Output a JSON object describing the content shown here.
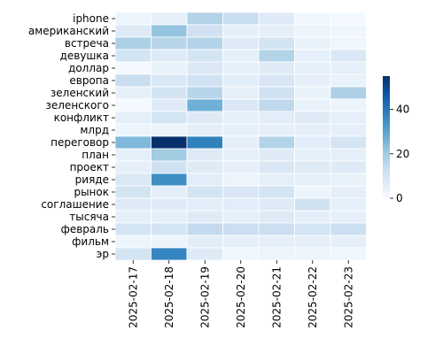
{
  "chart_data": {
    "type": "heatmap",
    "title": "",
    "xlabel": "",
    "ylabel": "",
    "categories": [
      "2025-02-17",
      "2025-02-18",
      "2025-02-19",
      "2025-02-20",
      "2025-02-21",
      "2025-02-22",
      "2025-02-23"
    ],
    "rows": [
      "iphone",
      "американский",
      "встреча",
      "девушка",
      "доллар",
      "европа",
      "зеленский",
      "зеленского",
      "конфликт",
      "млрд",
      "переговор",
      "план",
      "проект",
      "рияде",
      "рынок",
      "соглашение",
      "тысяча",
      "февраль",
      "фильм",
      "эр"
    ],
    "values": [
      [
        3,
        5,
        17,
        13,
        7,
        2,
        1
      ],
      [
        7,
        22,
        11,
        5,
        5,
        3,
        2
      ],
      [
        18,
        16,
        17,
        7,
        10,
        4,
        2
      ],
      [
        10,
        7,
        10,
        5,
        17,
        5,
        8
      ],
      [
        1,
        4,
        8,
        5,
        7,
        5,
        5
      ],
      [
        13,
        8,
        11,
        6,
        9,
        5,
        4
      ],
      [
        5,
        10,
        16,
        5,
        11,
        4,
        18
      ],
      [
        1,
        7,
        27,
        8,
        15,
        4,
        3
      ],
      [
        5,
        10,
        7,
        5,
        6,
        7,
        5
      ],
      [
        3,
        3,
        5,
        5,
        5,
        5,
        5
      ],
      [
        25,
        55,
        38,
        5,
        17,
        6,
        10
      ],
      [
        5,
        20,
        7,
        5,
        7,
        5,
        5
      ],
      [
        5,
        11,
        7,
        5,
        8,
        7,
        7
      ],
      [
        8,
        35,
        6,
        3,
        5,
        5,
        4
      ],
      [
        10,
        5,
        10,
        8,
        10,
        3,
        5
      ],
      [
        7,
        7,
        6,
        6,
        7,
        11,
        5
      ],
      [
        5,
        5,
        7,
        5,
        7,
        5,
        5
      ],
      [
        10,
        10,
        14,
        12,
        12,
        10,
        12
      ],
      [
        3,
        3,
        6,
        5,
        5,
        5,
        5
      ],
      [
        10,
        37,
        7,
        2,
        3,
        3,
        2
      ]
    ],
    "colorbar": {
      "min": 0,
      "max": 55,
      "ticks": [
        0,
        20,
        40
      ]
    },
    "grid": true,
    "colors": {
      "low": "#f7fbff",
      "high": "#08306b",
      "cell_border": "#ffffff"
    }
  }
}
